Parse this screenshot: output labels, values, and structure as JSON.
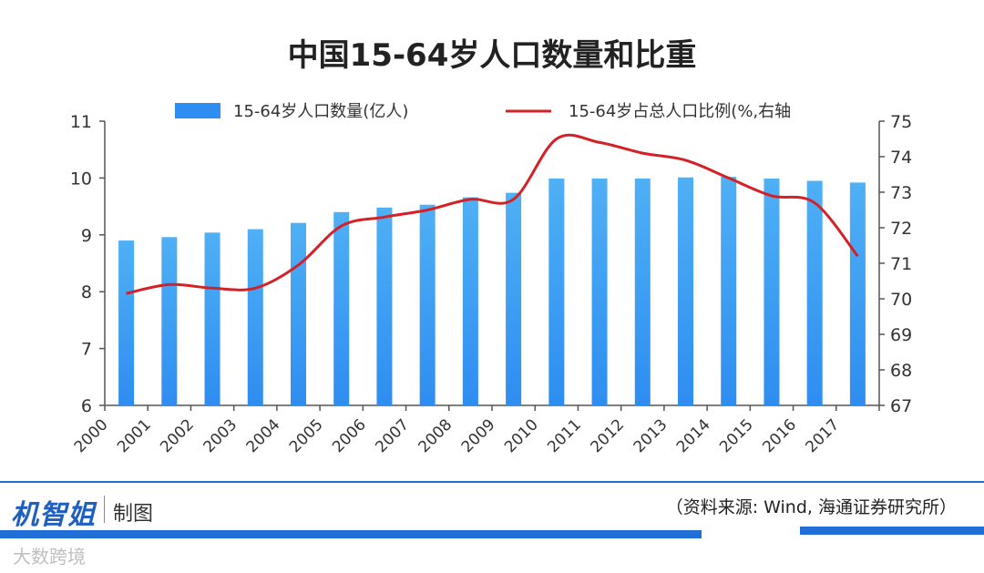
{
  "chart_data": {
    "type": "bar+line",
    "title": "中国15-64岁人口数量和比重",
    "categories": [
      "2000",
      "2001",
      "2002",
      "2003",
      "2004",
      "2005",
      "2006",
      "2007",
      "2008",
      "2009",
      "2010",
      "2011",
      "2012",
      "2013",
      "2014",
      "2015",
      "2016",
      "2017"
    ],
    "series": [
      {
        "name": "15-64岁人口数量(亿人)",
        "type": "bar",
        "axis": "left",
        "color": "#2e8df0",
        "values": [
          8.9,
          8.96,
          9.04,
          9.1,
          9.21,
          9.4,
          9.48,
          9.53,
          9.66,
          9.74,
          9.99,
          9.99,
          9.99,
          10.01,
          10.02,
          9.99,
          9.95,
          9.92
        ]
      },
      {
        "name": "15-64岁占总人口比例(%,右轴",
        "type": "line",
        "axis": "right",
        "color": "#d42027",
        "values": [
          70.15,
          70.4,
          70.3,
          70.3,
          70.95,
          72.05,
          72.3,
          72.5,
          72.8,
          72.8,
          74.5,
          74.4,
          74.1,
          73.9,
          73.4,
          72.9,
          72.7,
          71.2
        ]
      }
    ],
    "ylim_left": [
      6,
      11
    ],
    "yticks_left": [
      "6",
      "7",
      "8",
      "9",
      "10",
      "11"
    ],
    "ylim_right": [
      67,
      75
    ],
    "yticks_right": [
      "67",
      "68",
      "69",
      "70",
      "71",
      "72",
      "73",
      "74",
      "75"
    ],
    "legend_position": "top",
    "grid": false
  },
  "footer": {
    "brand": "机智姐",
    "made_by": "制图",
    "source": "（资料来源: Wind, 海通证券研究所）",
    "watermark": "大数跨境"
  },
  "colors": {
    "bar": "#2e8df0",
    "line": "#d42027",
    "brand": "#1f5fbf"
  }
}
